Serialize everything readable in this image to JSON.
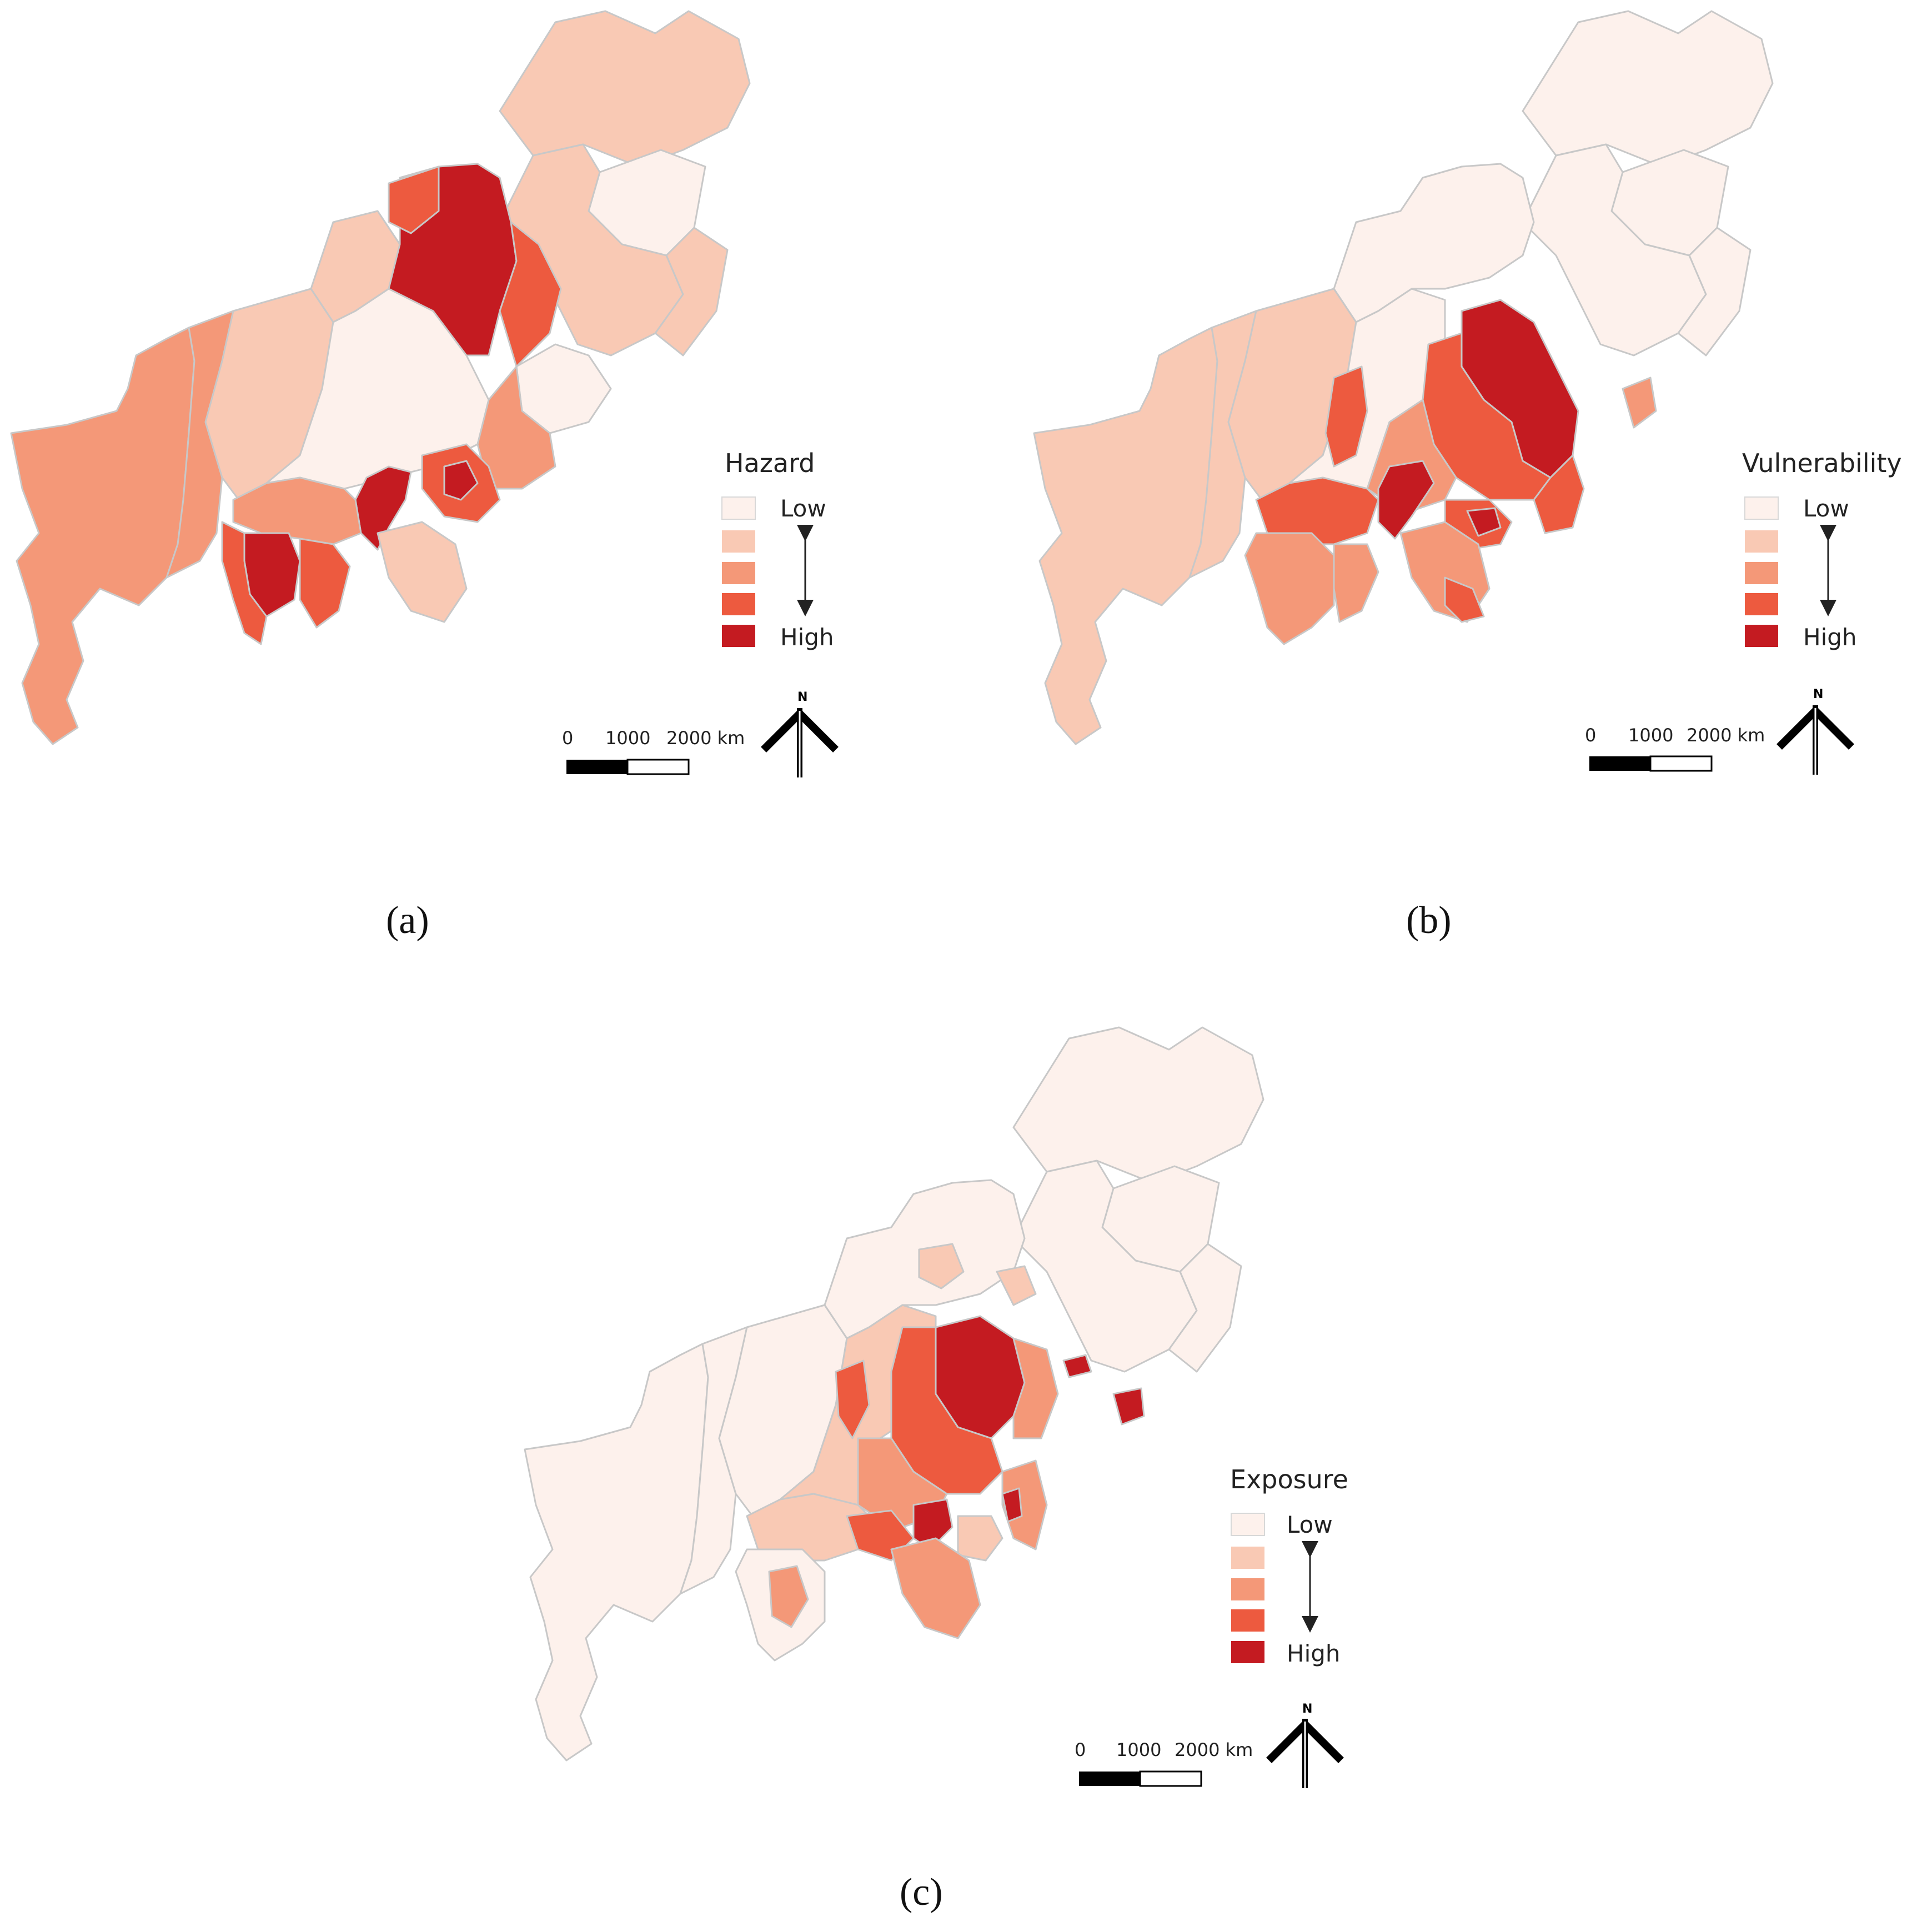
{
  "class_colors": [
    "#fdf1ec",
    "#f9c9b4",
    "#f49878",
    "#ed5a3f",
    "#c41b21"
  ],
  "panels": [
    {
      "id": "a",
      "label": "(a)",
      "legend": {
        "title": "Hazard",
        "low": "Low",
        "high": "High"
      },
      "scale": {
        "ticks": [
          "0",
          "1000",
          "2000 km"
        ]
      },
      "north": "N"
    },
    {
      "id": "b",
      "label": "(b)",
      "legend": {
        "title": "Vulnerability",
        "low": "Low",
        "high": "High"
      },
      "scale": {
        "ticks": [
          "0",
          "1000",
          "2000 km"
        ]
      },
      "north": "N"
    },
    {
      "id": "c",
      "label": "(c)",
      "legend": {
        "title": "Exposure",
        "low": "Low",
        "high": "High"
      },
      "scale": {
        "ticks": [
          "0",
          "1000",
          "2000 km"
        ]
      },
      "north": "N"
    }
  ]
}
